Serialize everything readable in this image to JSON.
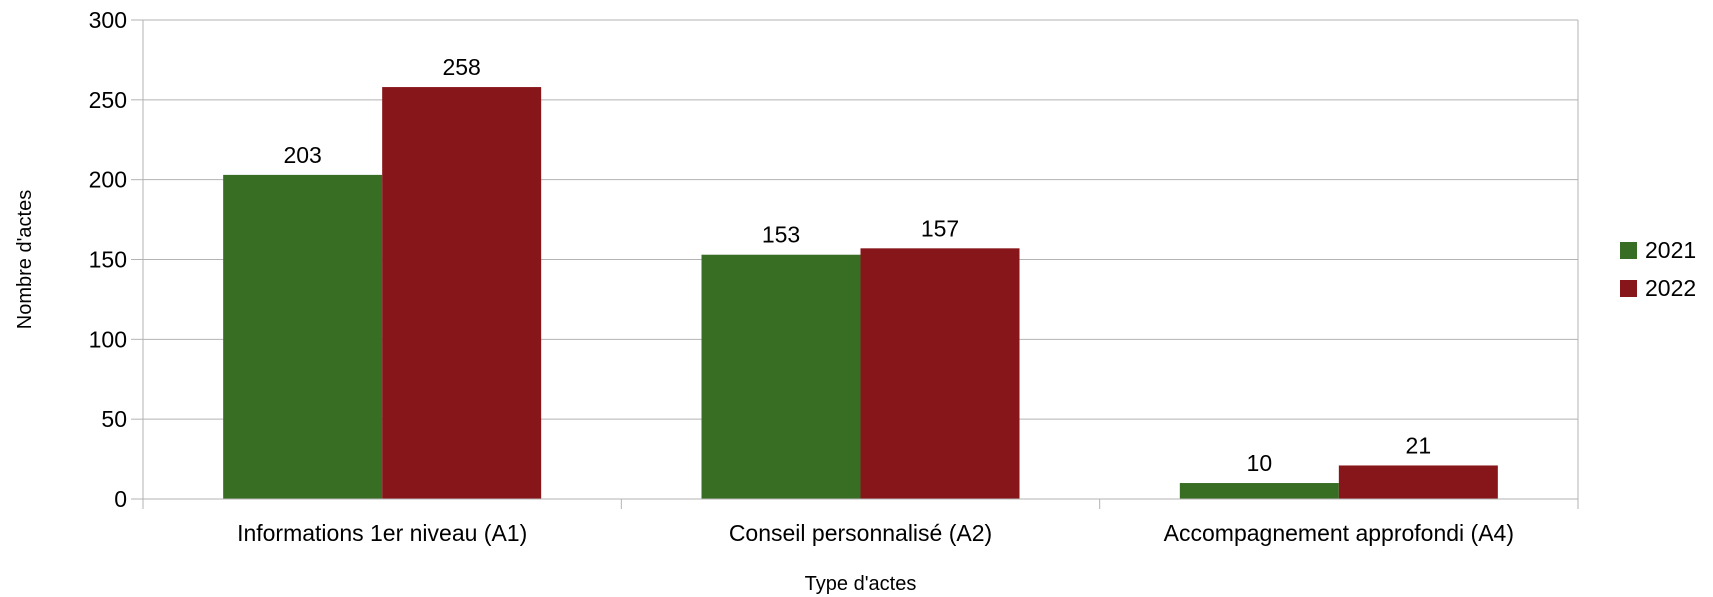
{
  "chart_data": {
    "type": "bar",
    "title": "",
    "xlabel": "Type d'actes",
    "ylabel": "Nombre d'actes",
    "categories": [
      "Informations 1er niveau (A1)",
      "Conseil personnalisé (A2)",
      "Accompagnement approfondi (A4)"
    ],
    "series": [
      {
        "name": "2021",
        "values": [
          203,
          153,
          10
        ],
        "color": "#376e23"
      },
      {
        "name": "2022",
        "values": [
          258,
          157,
          21
        ],
        "color": "#87161b"
      }
    ],
    "ylim": [
      0,
      300
    ],
    "yticks": [
      0,
      50,
      100,
      150,
      200,
      250,
      300
    ],
    "grid": true,
    "legend_position": "right",
    "data_labels": true
  }
}
